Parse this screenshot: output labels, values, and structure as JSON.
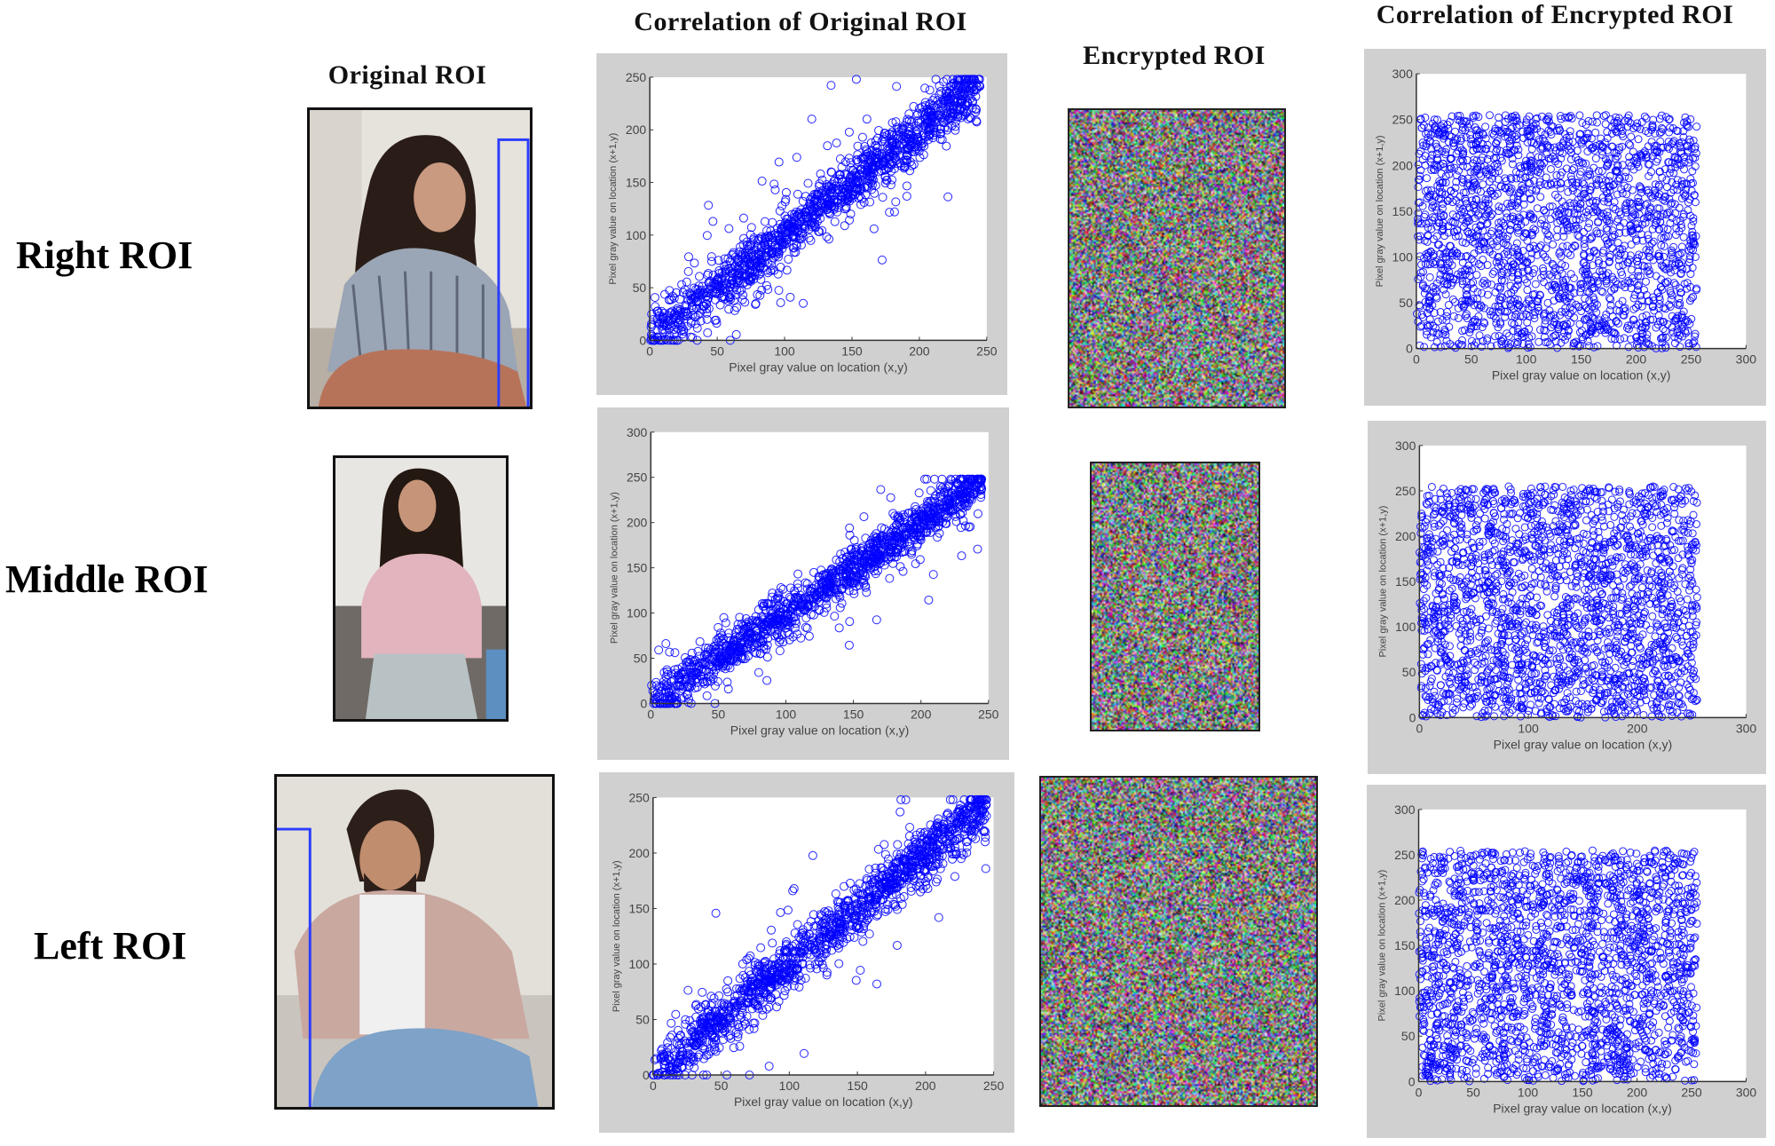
{
  "headers": {
    "original_roi": "Original ROI",
    "corr_original": "Correlation of  Original ROI",
    "encrypted_roi": "Encrypted ROI",
    "corr_encrypted": "Correlation of Encrypted ROI"
  },
  "rows": [
    {
      "label": "Right ROI"
    },
    {
      "label": "Middle ROI"
    },
    {
      "label": "Left ROI"
    }
  ],
  "colors": {
    "marker": "#0000ff",
    "frame": "#d0d0d0",
    "detection_box": "#2a3cff"
  },
  "chart_data": [
    {
      "type": "scatter",
      "row": "Right ROI",
      "panel": "Correlation of Original ROI",
      "pattern": "strong positive diagonal correlation",
      "marker": "open circle",
      "xlabel": "Pixel gray value on location (x,y)",
      "ylabel": "Pixel gray value on location (x+1,y)",
      "xlim": [
        0,
        250
      ],
      "ylim": [
        0,
        250
      ],
      "xticks": [
        "0",
        "50",
        "100",
        "150",
        "200",
        "250"
      ],
      "yticks": [
        "0",
        "50",
        "100",
        "150",
        "200",
        "250"
      ]
    },
    {
      "type": "scatter",
      "row": "Right ROI",
      "panel": "Correlation of Encrypted ROI",
      "pattern": "uniform distribution over 0-255",
      "marker": "open circle",
      "xlabel": "Pixel gray value on location (x,y)",
      "ylabel": "Pixel gray value on location (x+1,y)",
      "xlim": [
        0,
        300
      ],
      "ylim": [
        0,
        300
      ],
      "xticks": [
        "0",
        "50",
        "100",
        "150",
        "200",
        "250",
        "300"
      ],
      "yticks": [
        "0",
        "50",
        "100",
        "150",
        "200",
        "250",
        "300"
      ]
    },
    {
      "type": "scatter",
      "row": "Middle ROI",
      "panel": "Correlation of Original ROI",
      "pattern": "strong positive diagonal correlation",
      "marker": "open circle",
      "xlabel": "Pixel gray value on location (x,y)",
      "ylabel": "Pixel gray value on location (x+1,y)",
      "xlim": [
        0,
        250
      ],
      "ylim": [
        0,
        300
      ],
      "xticks": [
        "0",
        "50",
        "100",
        "150",
        "200",
        "250"
      ],
      "yticks": [
        "0",
        "50",
        "100",
        "150",
        "200",
        "250",
        "300"
      ]
    },
    {
      "type": "scatter",
      "row": "Middle ROI",
      "panel": "Correlation of Encrypted ROI",
      "pattern": "uniform distribution over 0-255",
      "marker": "open circle",
      "xlabel": "Pixel gray value on location (x,y)",
      "ylabel": "Pixel gray value on location (x+1,y)",
      "xlim": [
        0,
        300
      ],
      "ylim": [
        0,
        300
      ],
      "xticks": [
        "0",
        "100",
        "200",
        "300"
      ],
      "yticks": [
        "0",
        "50",
        "100",
        "150",
        "200",
        "250",
        "300"
      ]
    },
    {
      "type": "scatter",
      "row": "Left ROI",
      "panel": "Correlation of Original ROI",
      "pattern": "strong positive diagonal correlation",
      "marker": "open circle",
      "xlabel": "Pixel gray value on location (x,y)",
      "ylabel": "Pixel gray value on location (x+1,y)",
      "xlim": [
        0,
        250
      ],
      "ylim": [
        0,
        250
      ],
      "xticks": [
        "0",
        "50",
        "100",
        "150",
        "200",
        "250"
      ],
      "yticks": [
        "0",
        "50",
        "100",
        "150",
        "200",
        "250"
      ]
    },
    {
      "type": "scatter",
      "row": "Left ROI",
      "panel": "Correlation of Encrypted ROI",
      "pattern": "uniform distribution over 0-255",
      "marker": "open circle",
      "xlabel": "Pixel gray value on location (x,y)",
      "ylabel": "Pixel gray value on location (x+1,y)",
      "xlim": [
        0,
        300
      ],
      "ylim": [
        0,
        300
      ],
      "xticks": [
        "0",
        "50",
        "100",
        "150",
        "200",
        "250",
        "300"
      ],
      "yticks": [
        "0",
        "50",
        "100",
        "150",
        "200",
        "250",
        "300"
      ]
    }
  ]
}
